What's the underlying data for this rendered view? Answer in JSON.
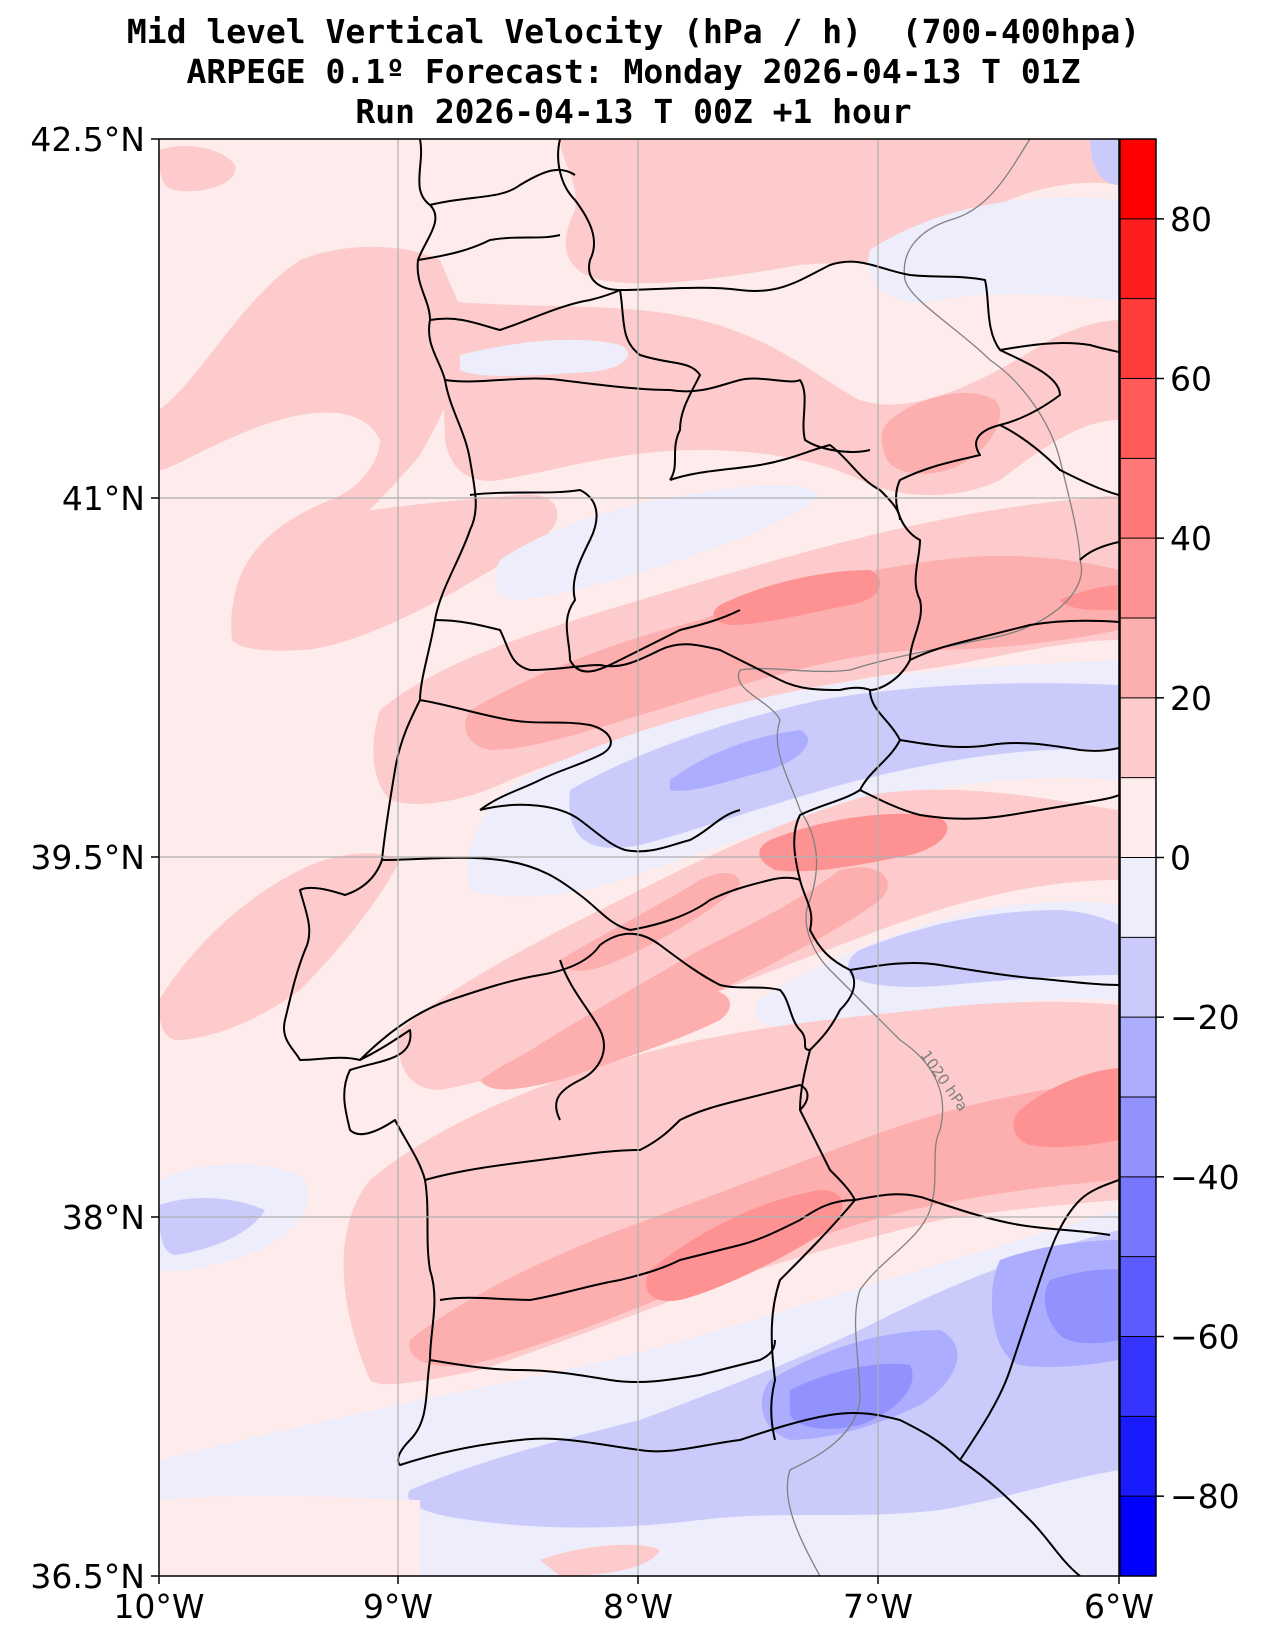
{
  "title": {
    "line1": "Mid level Vertical Velocity (hPa / h)  (700-400hpa)",
    "line2": "ARPEGE 0.1º Forecast: Monday 2026-04-13 T 01Z",
    "line3": "Run 2026-04-13 T 00Z +1 hour"
  },
  "map": {
    "lon_range": [
      -10,
      -6
    ],
    "lat_range": [
      36.5,
      42.5
    ],
    "lat_ticks": [
      {
        "value": 42.5,
        "label": "42.5°N"
      },
      {
        "value": 41.0,
        "label": "41°N"
      },
      {
        "value": 39.5,
        "label": "39.5°N"
      },
      {
        "value": 38.0,
        "label": "38°N"
      },
      {
        "value": 36.5,
        "label": "36.5°N"
      }
    ],
    "lon_ticks": [
      {
        "value": -10,
        "label": "10°W"
      },
      {
        "value": -9,
        "label": "9°W"
      },
      {
        "value": -8,
        "label": "8°W"
      },
      {
        "value": -7,
        "label": "7°W"
      },
      {
        "value": -6,
        "label": "6°W"
      }
    ],
    "isobar_label": "1020 hPa"
  },
  "colorbar": {
    "min": -90,
    "max": 90,
    "levels": [
      {
        "from": -90,
        "to": -80,
        "color": "#0000ff"
      },
      {
        "from": -80,
        "to": -70,
        "color": "#1a1aff"
      },
      {
        "from": -70,
        "to": -60,
        "color": "#3535ff"
      },
      {
        "from": -60,
        "to": -50,
        "color": "#5b5bff"
      },
      {
        "from": -50,
        "to": -40,
        "color": "#7676ff"
      },
      {
        "from": -40,
        "to": -30,
        "color": "#9292ff"
      },
      {
        "from": -30,
        "to": -20,
        "color": "#adadff"
      },
      {
        "from": -20,
        "to": -10,
        "color": "#cbcbfb"
      },
      {
        "from": -10,
        "to": 0,
        "color": "#ededfb"
      },
      {
        "from": 0,
        "to": 10,
        "color": "#fdeceb"
      },
      {
        "from": 10,
        "to": 20,
        "color": "#fdcbcb"
      },
      {
        "from": 20,
        "to": 30,
        "color": "#fdaeae"
      },
      {
        "from": 30,
        "to": 40,
        "color": "#fe9292"
      },
      {
        "from": 40,
        "to": 50,
        "color": "#ff7777"
      },
      {
        "from": 50,
        "to": 60,
        "color": "#ff5a5a"
      },
      {
        "from": 60,
        "to": 70,
        "color": "#ff3c3c"
      },
      {
        "from": 70,
        "to": 80,
        "color": "#ff1e1e"
      },
      {
        "from": 80,
        "to": 90,
        "color": "#ff0000"
      }
    ],
    "ticks": [
      {
        "value": 80,
        "label": "80"
      },
      {
        "value": 60,
        "label": "60"
      },
      {
        "value": 40,
        "label": "40"
      },
      {
        "value": 20,
        "label": "20"
      },
      {
        "value": 0,
        "label": "0"
      },
      {
        "value": -20,
        "label": "−20"
      },
      {
        "value": -40,
        "label": "−40"
      },
      {
        "value": -60,
        "label": "−60"
      },
      {
        "value": -80,
        "label": "−80"
      }
    ]
  },
  "colors": {
    "land_border": "#000000",
    "grid": "#b0b0b0",
    "isobar": "#808080"
  }
}
